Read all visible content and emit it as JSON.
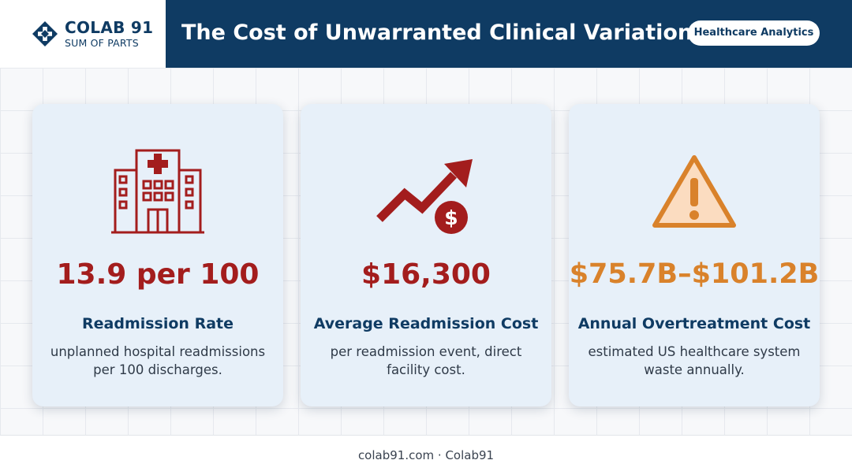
{
  "brand": {
    "name": "COLAB 91",
    "tagline": "SUM OF PARTS",
    "logo_icon": "diamond-cross-logo-icon"
  },
  "header": {
    "title": "The Cost of Unwarranted Clinical Variation",
    "badge": "Healthcare Analytics"
  },
  "colors": {
    "header_bg": "#0f3b63",
    "card_bg": "#e7f0f9",
    "accent_red": "#a31d1d",
    "accent_orange": "#d9822b",
    "warning_fill": "#fbdcc0"
  },
  "cards": [
    {
      "icon": "hospital-icon",
      "value": "13.9 per 100",
      "label": "Readmission Rate",
      "description": "unplanned hospital readmissions per 100 discharges."
    },
    {
      "icon": "rising-cost-arrow-icon",
      "value": "$16,300",
      "label": "Average Readmission Cost",
      "description": "per readmission event, direct facility cost."
    },
    {
      "icon": "warning-icon",
      "value": "$75.7B–$101.2B",
      "label": "Annual Overtreatment Cost",
      "description": "estimated US healthcare system waste annually."
    }
  ],
  "footer": {
    "text": "colab91.com · Colab91"
  }
}
